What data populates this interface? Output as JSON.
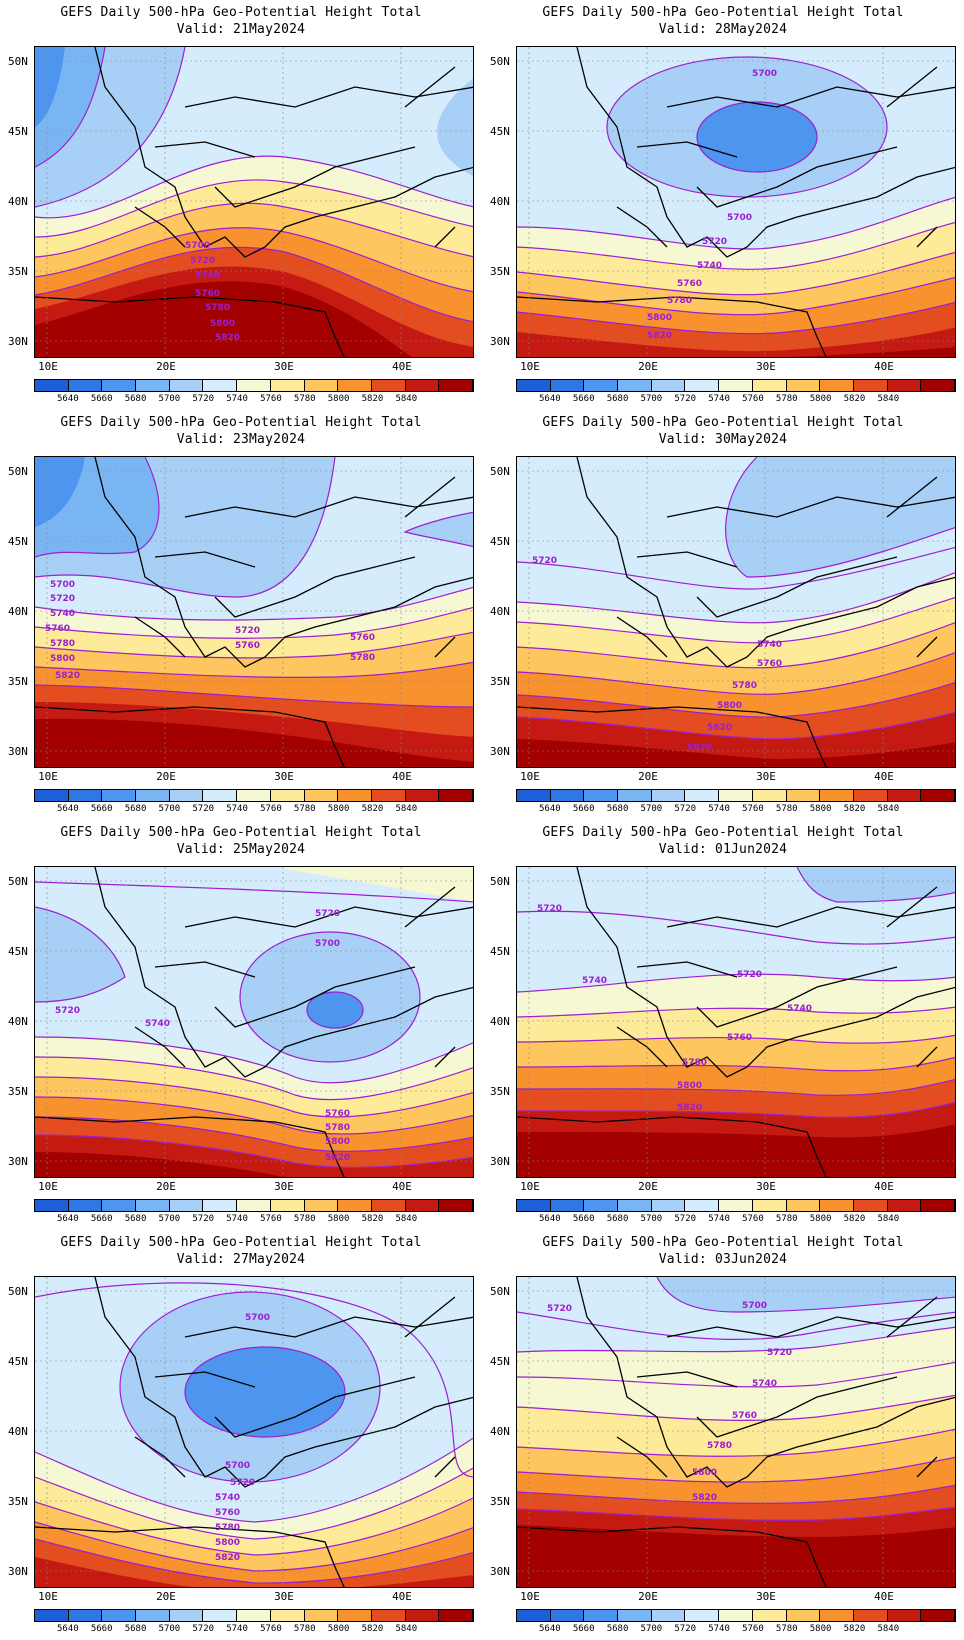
{
  "panel_title": "GEFS Daily 500-hPa Geo-Potential Height Total",
  "valid_prefix": "Valid: ",
  "lat_labels": [
    "50N",
    "45N",
    "40N",
    "35N",
    "30N"
  ],
  "lon_labels": [
    "10E",
    "20E",
    "30E",
    "40E"
  ],
  "colorbar": {
    "colors": [
      "#1d5fd6",
      "#2f78e4",
      "#4d95ee",
      "#7ab5f3",
      "#a8d0f7",
      "#d4ecfb",
      "#f6f8d3",
      "#fdeb9a",
      "#fdc65e",
      "#f7922f",
      "#e44d1f",
      "#c51a12",
      "#a30000"
    ],
    "labels": [
      "5640",
      "5660",
      "5680",
      "5700",
      "5720",
      "5740",
      "5760",
      "5780",
      "5800",
      "5820",
      "5840"
    ]
  },
  "panels": [
    {
      "id": "p21may",
      "valid_date": "21May2024",
      "contour_labels": [
        "5700",
        "5720",
        "5740",
        "5760",
        "5780",
        "5800",
        "5820"
      ]
    },
    {
      "id": "p28may",
      "valid_date": "28May2024",
      "contour_labels": [
        "5700",
        "5700",
        "5720",
        "5740",
        "5760",
        "5780",
        "5800",
        "5820"
      ]
    },
    {
      "id": "p23may",
      "valid_date": "23May2024",
      "contour_labels": [
        "5700",
        "5720",
        "5740",
        "5760",
        "5780",
        "5800",
        "5820",
        "5720",
        "5760",
        "5760",
        "5780"
      ]
    },
    {
      "id": "p30may",
      "valid_date": "30May2024",
      "contour_labels": [
        "5720",
        "5740",
        "5760",
        "5780",
        "5800",
        "5820",
        "5820"
      ]
    },
    {
      "id": "p25may",
      "valid_date": "25May2024",
      "contour_labels": [
        "5720",
        "5700",
        "5720",
        "5740",
        "5760",
        "5780",
        "5800",
        "5820"
      ]
    },
    {
      "id": "p01jun",
      "valid_date": "01Jun2024",
      "contour_labels": [
        "5720",
        "5720",
        "5740",
        "5740",
        "5760",
        "5780",
        "5800",
        "5820"
      ]
    },
    {
      "id": "p27may",
      "valid_date": "27May2024",
      "contour_labels": [
        "5700",
        "5700",
        "5720",
        "5740",
        "5760",
        "5780",
        "5800",
        "5820"
      ]
    },
    {
      "id": "p03jun",
      "valid_date": "03Jun2024",
      "contour_labels": [
        "5720",
        "5700",
        "5720",
        "5740",
        "5760",
        "5780",
        "5800",
        "5820"
      ]
    }
  ]
}
